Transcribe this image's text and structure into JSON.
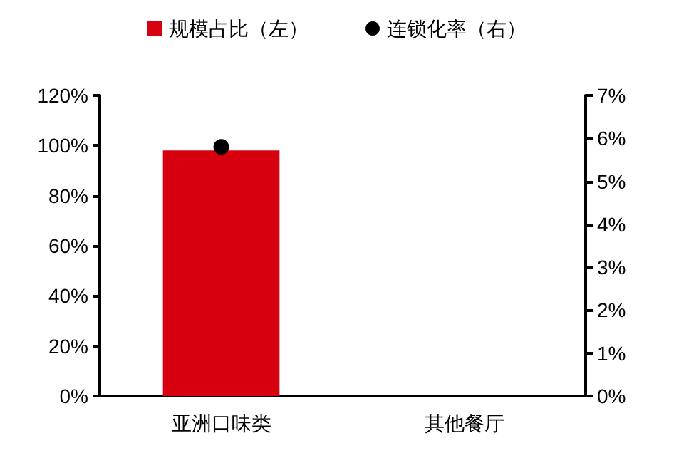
{
  "chart_data": {
    "type": "bar",
    "categories": [
      "亚洲口味类",
      "其他餐厅"
    ],
    "series": [
      {
        "name": "规模占比（左）",
        "color": "#d7000f",
        "values": [
          98,
          null
        ]
      },
      {
        "name": "连锁化率（右）",
        "type": "scatter",
        "axis": "y2",
        "color": "#000000",
        "marker": "circle",
        "values": [
          5.8,
          null
        ]
      }
    ],
    "ylim": [
      0,
      120
    ],
    "yticks": [
      {
        "value": 0,
        "label": "0%"
      },
      {
        "value": 20,
        "label": "20%"
      },
      {
        "value": 40,
        "label": "40%"
      },
      {
        "value": 60,
        "label": "60%"
      },
      {
        "value": 80,
        "label": "80%"
      },
      {
        "value": 100,
        "label": "100%"
      },
      {
        "value": 120,
        "label": "120%"
      }
    ],
    "y2lim": [
      0,
      7
    ],
    "y2ticks": [
      {
        "value": 0,
        "label": "0%"
      },
      {
        "value": 1,
        "label": "1%"
      },
      {
        "value": 2,
        "label": "2%"
      },
      {
        "value": 3,
        "label": "3%"
      },
      {
        "value": 4,
        "label": "4%"
      },
      {
        "value": 5,
        "label": "5%"
      },
      {
        "value": 6,
        "label": "6%"
      },
      {
        "value": 7,
        "label": "7%"
      }
    ],
    "grid": false,
    "legend": "top"
  }
}
